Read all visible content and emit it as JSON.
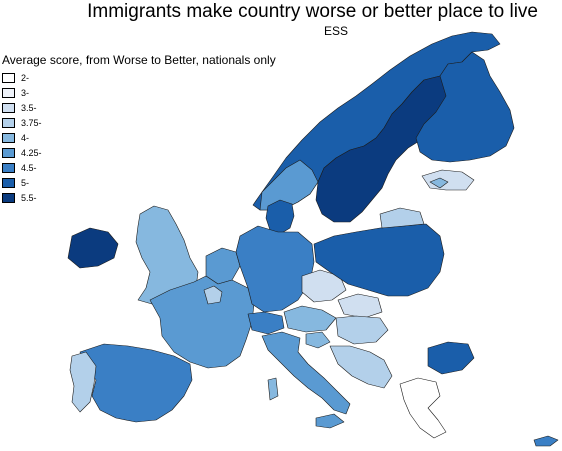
{
  "title": "Immigrants make country worse or better place to live",
  "subtitle": "ESS",
  "legend": {
    "title": "Average score, from Worse to Better, nationals only",
    "items": [
      {
        "label": "2-",
        "color": "#ffffff"
      },
      {
        "label": "3-",
        "color": "#eff3fa"
      },
      {
        "label": "3.5-",
        "color": "#d0dff0"
      },
      {
        "label": "3.75-",
        "color": "#b3d0ea"
      },
      {
        "label": "4-",
        "color": "#86b8df"
      },
      {
        "label": "4.25-",
        "color": "#5a9ad2"
      },
      {
        "label": "4.5-",
        "color": "#3a7fc5"
      },
      {
        "label": "5-",
        "color": "#1a5eaa"
      },
      {
        "label": "5.5-",
        "color": "#0b3b7f"
      }
    ]
  }
}
